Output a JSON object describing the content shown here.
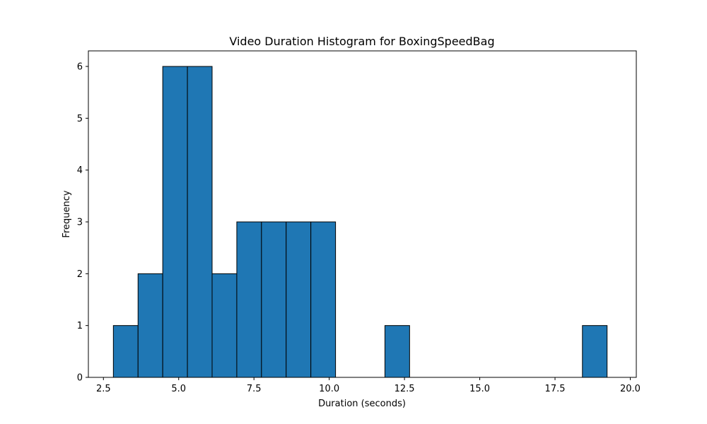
{
  "chart_data": {
    "type": "bar",
    "title": "Video Duration Histogram for BoxingSpeedBag",
    "xlabel": "Duration (seconds)",
    "ylabel": "Frequency",
    "xlim": [
      2.0,
      20.2
    ],
    "ylim": [
      0,
      6.3
    ],
    "xticks": [
      2.5,
      5.0,
      7.5,
      10.0,
      12.5,
      15.0,
      17.5,
      20.0
    ],
    "xtick_labels": [
      "2.5",
      "5.0",
      "7.5",
      "10.0",
      "12.5",
      "15.0",
      "17.5",
      "20.0"
    ],
    "yticks": [
      0,
      1,
      2,
      3,
      4,
      5,
      6
    ],
    "ytick_labels": [
      "0",
      "1",
      "2",
      "3",
      "4",
      "5",
      "6"
    ],
    "bin_edges": [
      2.83,
      3.65,
      4.47,
      5.29,
      6.11,
      6.93,
      7.75,
      8.57,
      9.39,
      10.21,
      11.03,
      11.85,
      12.67,
      13.49,
      14.31,
      15.13,
      15.95,
      16.77,
      17.59,
      18.41,
      19.23
    ],
    "values": [
      1,
      2,
      6,
      6,
      2,
      3,
      3,
      3,
      3,
      0,
      0,
      1,
      0,
      0,
      0,
      0,
      0,
      0,
      0,
      1
    ],
    "bar_color": "#1f77b4",
    "edge_color": "#000000",
    "grid": false
  }
}
